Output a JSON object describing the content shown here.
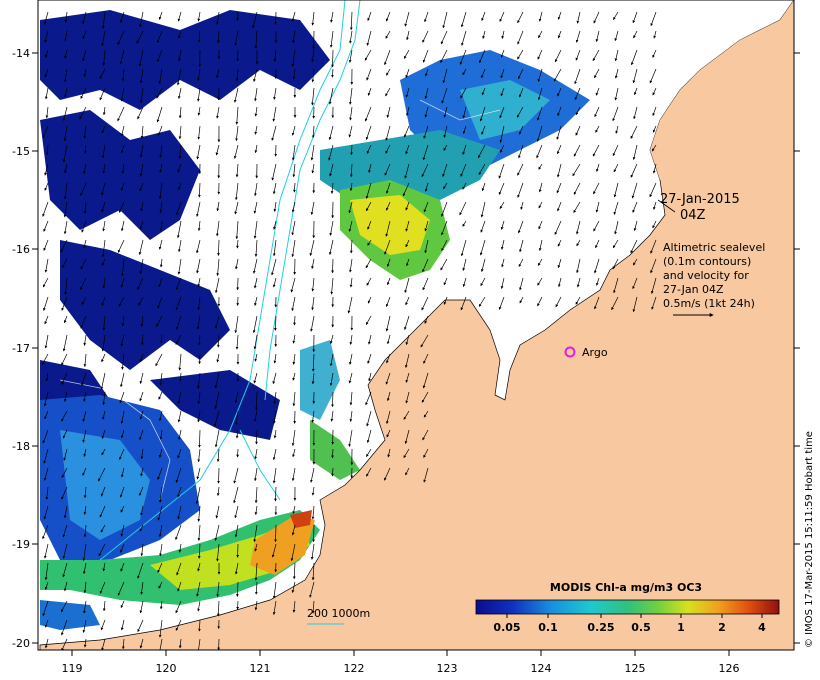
{
  "map": {
    "lon_ticks": [
      "119",
      "120",
      "121",
      "122",
      "123",
      "124",
      "125",
      "126"
    ],
    "lat_ticks": [
      "-14",
      "-15",
      "-16",
      "-17",
      "-18",
      "-19",
      "-20"
    ],
    "date_label": "27-Jan-2015",
    "time_label": "04Z",
    "description_lines": [
      "Altimetric sealevel",
      "(0.1m contours)",
      "and velocity for",
      "27-Jan 04Z",
      "0.5m/s (1kt 24h)"
    ],
    "argo_label": "Argo",
    "bathymetry_label": "200  1000m",
    "credit": "© IMOS 17-Mar-2015 15:11:59 Hobart time"
  },
  "colorbar": {
    "title": "MODIS Chl-a mg/m3 OC3",
    "ticks": [
      "0.05",
      "0.1",
      "0.25",
      "0.5",
      "1",
      "2",
      "4"
    ]
  },
  "colors": {
    "land": "#f8c8a0",
    "argo_marker": "#e020e0",
    "contour": "#20d0e0",
    "low_chl": "#0a1a8c",
    "high_chl": "#a01010"
  }
}
